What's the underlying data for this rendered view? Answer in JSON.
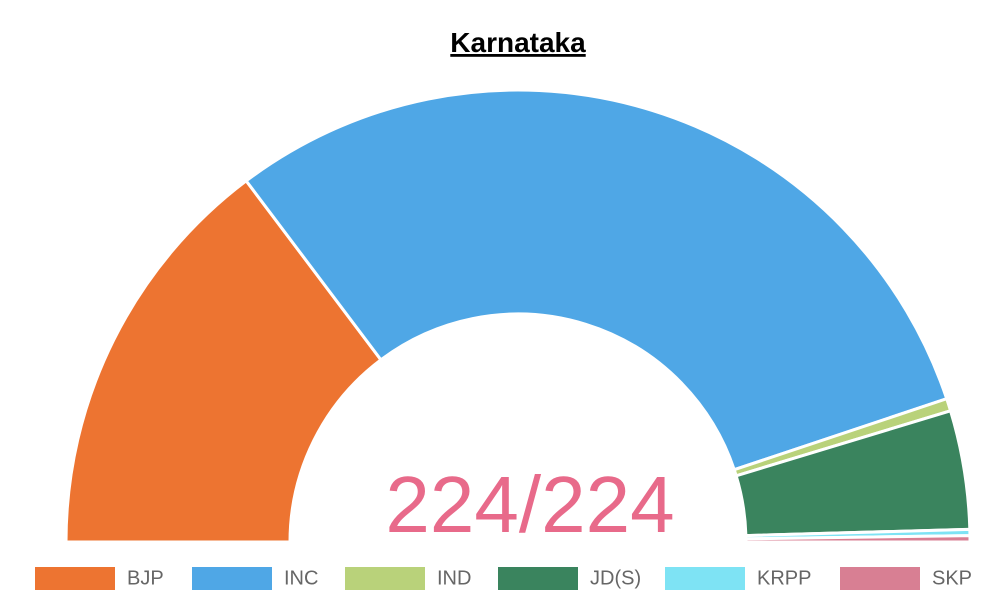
{
  "chart_data": {
    "type": "pie",
    "title": "Karnataka",
    "center_label": "224/224",
    "categories": [
      "BJP",
      "INC",
      "IND",
      "JD(S)",
      "KRPP",
      "SKP"
    ],
    "values": [
      66,
      135,
      2,
      19,
      1,
      1
    ],
    "colors": [
      "#ed7431",
      "#4fa7e6",
      "#b9d27a",
      "#3a845e",
      "#7ee3f4",
      "#d87f93"
    ]
  }
}
